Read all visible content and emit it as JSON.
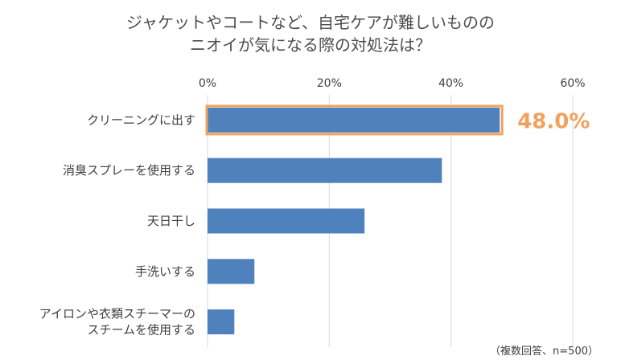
{
  "chart_data": {
    "type": "bar",
    "orientation": "horizontal",
    "title": [
      "ジャケットやコートなど、自宅ケアが難しいものの",
      "ニオイが気になる際の対処法は？"
    ],
    "categories": [
      [
        "クリーニングに出す"
      ],
      [
        "消臭スプレーを使用する"
      ],
      [
        "天日干し"
      ],
      [
        "手洗いする"
      ],
      [
        "アイロンや衣類スチーマーの",
        "スチームを使用する"
      ]
    ],
    "values": [
      48.0,
      38.5,
      25.8,
      7.7,
      4.4
    ],
    "xlim": [
      0,
      60
    ],
    "xticks": [
      0,
      20,
      40,
      60
    ],
    "tick_labels": [
      "0%",
      "20%",
      "40%",
      "60%"
    ],
    "grid": true,
    "highlight": {
      "index": 0,
      "label": "48.0%",
      "color": "#f2a15d"
    },
    "bar_color": "#4f81bd",
    "note": "（複数回答、n=500）"
  }
}
